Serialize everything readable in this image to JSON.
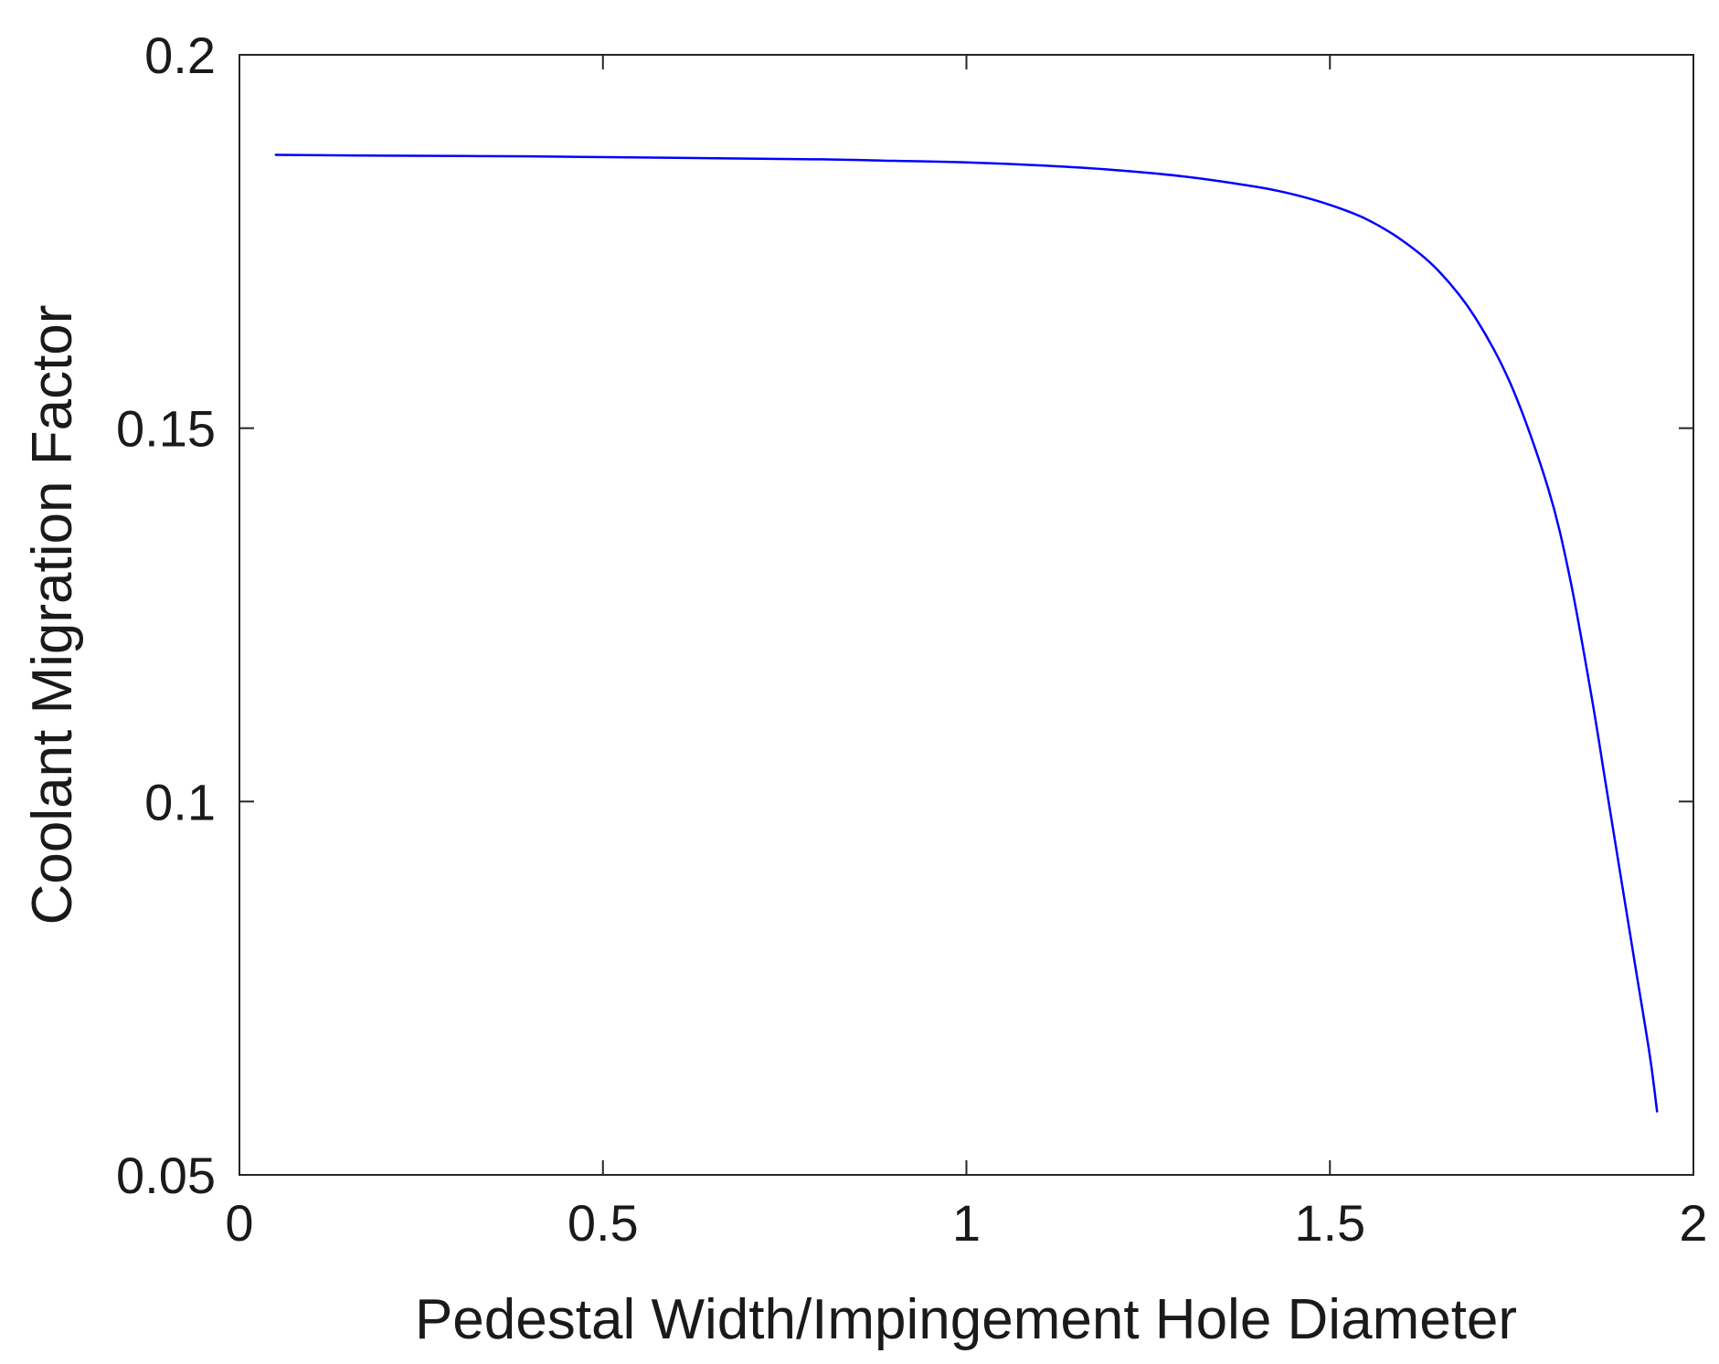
{
  "chart_data": {
    "type": "line",
    "title": "",
    "xlabel": "Pedestal Width/Impingement Hole Diameter",
    "ylabel": "Coolant Migration Factor",
    "xlim": [
      0,
      2
    ],
    "ylim": [
      0.05,
      0.2
    ],
    "xticks": [
      0,
      0.5,
      1,
      1.5,
      2
    ],
    "xtick_labels": [
      "0",
      "0.5",
      "1",
      "1.5",
      "2"
    ],
    "yticks": [
      0.05,
      0.1,
      0.15,
      0.2
    ],
    "ytick_labels": [
      "0.05",
      "0.1",
      "0.15",
      "0.2"
    ],
    "grid": false,
    "box": true,
    "axis_color": "#262626",
    "series": [
      {
        "color": "#0000ff",
        "x": [
          0.05,
          0.2,
          0.4,
          0.6,
          0.8,
          0.9,
          1.0,
          1.1,
          1.2,
          1.3,
          1.4,
          1.45,
          1.5,
          1.55,
          1.6,
          1.65,
          1.7,
          1.75,
          1.8,
          1.83,
          1.86,
          1.88,
          1.9,
          1.92,
          1.94,
          1.95
        ],
        "y": [
          0.1866,
          0.1865,
          0.1864,
          0.1862,
          0.186,
          0.1858,
          0.1856,
          0.1852,
          0.1846,
          0.1837,
          0.1823,
          0.1813,
          0.1799,
          0.178,
          0.1751,
          0.171,
          0.1648,
          0.1556,
          0.142,
          0.13,
          0.114,
          0.102,
          0.09,
          0.078,
          0.066,
          0.0585
        ]
      }
    ]
  }
}
